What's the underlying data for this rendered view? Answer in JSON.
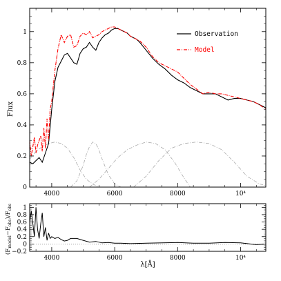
{
  "chart_data": [
    {
      "type": "line",
      "xlabel": "",
      "ylabel": "Flux",
      "xlim": [
        3300,
        10800
      ],
      "ylim": [
        0,
        1.15
      ],
      "x_ticks": [
        4000,
        6000,
        8000,
        10000
      ],
      "x_tick_labels": [
        "4000",
        "6000",
        "8000",
        "10⁴"
      ],
      "y_ticks": [
        0,
        0.2,
        0.4,
        0.6,
        0.8,
        1
      ],
      "y_tick_labels": [
        "0",
        "0.2",
        "0.4",
        "0.6",
        "0.8",
        "1"
      ],
      "legend": {
        "position": "top-right",
        "entries": [
          {
            "label": "Observation",
            "color": "#000000",
            "dash": "solid"
          },
          {
            "label": "Model",
            "color": "#ff0000",
            "dash": "dash-dot"
          }
        ]
      },
      "series": [
        {
          "name": "Observation",
          "color": "#000000",
          "x": [
            3300,
            3400,
            3500,
            3600,
            3700,
            3800,
            3900,
            4000,
            4100,
            4200,
            4300,
            4400,
            4500,
            4600,
            4700,
            4800,
            4900,
            5000,
            5100,
            5200,
            5300,
            5400,
            5500,
            5600,
            5700,
            5800,
            5900,
            6000,
            6100,
            6200,
            6300,
            6400,
            6500,
            6600,
            6700,
            6800,
            7000,
            7200,
            7400,
            7600,
            7800,
            8000,
            8200,
            8400,
            8600,
            8800,
            9000,
            9200,
            9400,
            9600,
            9800,
            10000,
            10200,
            10400,
            10600,
            10800
          ],
          "values": [
            0.16,
            0.15,
            0.17,
            0.19,
            0.16,
            0.22,
            0.28,
            0.5,
            0.68,
            0.77,
            0.81,
            0.85,
            0.86,
            0.83,
            0.8,
            0.79,
            0.86,
            0.89,
            0.9,
            0.93,
            0.9,
            0.88,
            0.93,
            0.96,
            0.98,
            0.99,
            1.01,
            1.02,
            1.02,
            1.01,
            1.0,
            0.99,
            0.97,
            0.96,
            0.95,
            0.93,
            0.88,
            0.83,
            0.79,
            0.76,
            0.72,
            0.69,
            0.67,
            0.64,
            0.62,
            0.6,
            0.6,
            0.6,
            0.58,
            0.56,
            0.57,
            0.57,
            0.56,
            0.55,
            0.53,
            0.51
          ]
        },
        {
          "name": "Model",
          "color": "#ff0000",
          "x": [
            3300,
            3350,
            3400,
            3450,
            3500,
            3550,
            3600,
            3650,
            3700,
            3750,
            3800,
            3850,
            3900,
            3950,
            4000,
            4100,
            4200,
            4300,
            4400,
            4500,
            4600,
            4700,
            4800,
            4900,
            5000,
            5100,
            5200,
            5300,
            5400,
            5500,
            5600,
            5700,
            5800,
            5900,
            6000,
            6100,
            6200,
            6300,
            6400,
            6500,
            6600,
            6700,
            6800,
            7000,
            7200,
            7400,
            7600,
            7800,
            8000,
            8200,
            8400,
            8600,
            8800,
            9000,
            9200,
            9400,
            9600,
            9800,
            10000,
            10200,
            10400,
            10600,
            10800
          ],
          "values": [
            0.3,
            0.2,
            0.26,
            0.32,
            0.22,
            0.27,
            0.3,
            0.33,
            0.23,
            0.38,
            0.25,
            0.44,
            0.3,
            0.5,
            0.55,
            0.75,
            0.89,
            0.98,
            0.93,
            0.97,
            0.98,
            0.9,
            0.91,
            0.97,
            0.99,
            0.98,
            1.0,
            0.96,
            0.97,
            0.98,
            1.0,
            1.01,
            1.02,
            1.03,
            1.03,
            1.02,
            1.01,
            1.0,
            0.99,
            0.97,
            0.96,
            0.95,
            0.94,
            0.9,
            0.84,
            0.8,
            0.78,
            0.76,
            0.74,
            0.7,
            0.66,
            0.63,
            0.6,
            0.61,
            0.6,
            0.6,
            0.59,
            0.58,
            0.57,
            0.56,
            0.55,
            0.53,
            0.5
          ]
        },
        {
          "name": "",
          "color": "#aaaaaa",
          "x": [
            3300,
            3500,
            3700,
            3900,
            4100,
            4300,
            4500,
            4700,
            4900,
            5100,
            5300,
            5500
          ],
          "values": [
            0.18,
            0.23,
            0.26,
            0.28,
            0.29,
            0.28,
            0.25,
            0.19,
            0.11,
            0.05,
            0.02,
            0.0
          ]
        },
        {
          "name": "",
          "color": "#aaaaaa",
          "x": [
            4600,
            4800,
            5000,
            5100,
            5200,
            5300,
            5400,
            5500,
            5600,
            5800,
            6000,
            6200
          ],
          "values": [
            0.0,
            0.04,
            0.14,
            0.21,
            0.26,
            0.29,
            0.28,
            0.24,
            0.18,
            0.08,
            0.02,
            0.0
          ]
        },
        {
          "name": "",
          "color": "#aaaaaa",
          "x": [
            5200,
            5500,
            5800,
            6100,
            6400,
            6700,
            7000,
            7300,
            7600,
            7900,
            8200,
            8400
          ],
          "values": [
            0.0,
            0.05,
            0.12,
            0.19,
            0.24,
            0.27,
            0.29,
            0.28,
            0.24,
            0.16,
            0.06,
            0.0
          ]
        },
        {
          "name": "",
          "color": "#aaaaaa",
          "x": [
            6600,
            7000,
            7400,
            7800,
            8200,
            8600,
            9000,
            9400,
            9800,
            10200,
            10600,
            10800
          ],
          "values": [
            0.0,
            0.07,
            0.17,
            0.25,
            0.28,
            0.29,
            0.28,
            0.24,
            0.16,
            0.07,
            0.02,
            0.01
          ]
        }
      ]
    },
    {
      "type": "line",
      "xlabel": "λ[Å]",
      "ylabel": "(F_model − F_obs) / F_obs",
      "ylabel_parts": {
        "open": "(F",
        "sub1": "model",
        "mid": "−F",
        "sub2": "obs",
        "close": ")/F",
        "sub3": "obs"
      },
      "xlim": [
        3300,
        10800
      ],
      "ylim": [
        -0.2,
        1.1
      ],
      "x_ticks": [
        4000,
        6000,
        8000,
        10000
      ],
      "x_tick_labels": [
        "4000",
        "6000",
        "8000",
        "10⁴"
      ],
      "y_ticks": [
        -0.2,
        0,
        0.2,
        0.4,
        0.6,
        0.8,
        1
      ],
      "y_tick_labels": [
        "−0.2",
        "0",
        "0.2",
        "0.4",
        "0.6",
        "0.8",
        "1"
      ],
      "series": [
        {
          "name": "",
          "color": "#000000",
          "x": [
            3300,
            3350,
            3400,
            3450,
            3500,
            3550,
            3600,
            3650,
            3700,
            3750,
            3800,
            3850,
            3900,
            3950,
            4000,
            4100,
            4200,
            4300,
            4400,
            4500,
            4600,
            4800,
            5000,
            5200,
            5400,
            5600,
            5800,
            6000,
            6200,
            6500,
            7000,
            7500,
            8000,
            8500,
            9000,
            9500,
            10000,
            10500,
            10800
          ],
          "values": [
            0.6,
            0.9,
            0.55,
            0.2,
            1.0,
            0.4,
            0.15,
            0.55,
            0.85,
            0.2,
            0.45,
            0.1,
            0.3,
            0.15,
            0.2,
            0.15,
            0.18,
            0.12,
            0.08,
            0.1,
            0.15,
            0.15,
            0.1,
            0.05,
            0.07,
            0.03,
            0.04,
            0.02,
            0.02,
            0.01,
            0.02,
            0.03,
            0.04,
            0.02,
            0.02,
            0.04,
            0.03,
            -0.02,
            0.0
          ]
        }
      ]
    }
  ]
}
